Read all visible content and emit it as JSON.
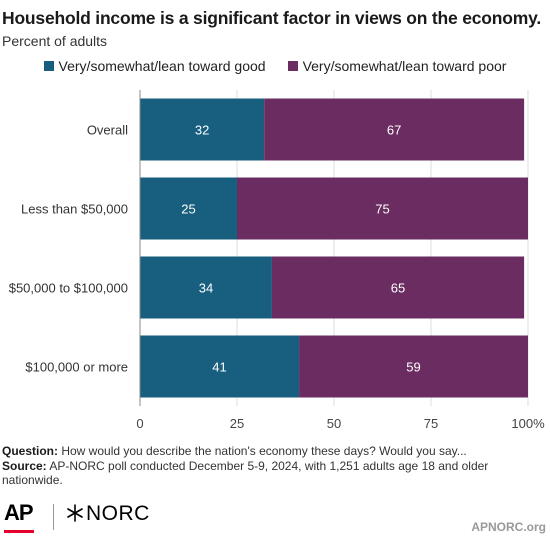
{
  "chart_data": {
    "type": "bar",
    "orientation": "horizontal",
    "stacked": true,
    "title": "Household income is a significant factor in views on the economy.",
    "subtitle": "Percent of adults",
    "categories": [
      "Overall",
      "Less than $50,000",
      "$50,000 to $100,000",
      "$100,000 or more"
    ],
    "series": [
      {
        "name": "Very/somewhat/lean toward good",
        "values": [
          32,
          25,
          34,
          41
        ],
        "color": "#175e7f"
      },
      {
        "name": "Very/somewhat/lean toward poor",
        "values": [
          67,
          75,
          65,
          59
        ],
        "color": "#6b2c61"
      }
    ],
    "xlim": [
      0,
      100
    ],
    "xticks": [
      "0",
      "25",
      "50",
      "75",
      "100%"
    ],
    "grid": true,
    "legend_position": "top"
  },
  "footer": {
    "question_label": "Question:",
    "question_text": "How would you describe the nation's economy these days? Would you say...",
    "source_label": "Source:",
    "source_text": "AP-NORC poll conducted December 5-9, 2024, with 1,251 adults age 18 and older nationwide."
  },
  "branding": {
    "ap_logo": "AP",
    "norc_logo": "NORC",
    "norc_icon": "asterisk-icon",
    "site": "APNORC.org"
  }
}
